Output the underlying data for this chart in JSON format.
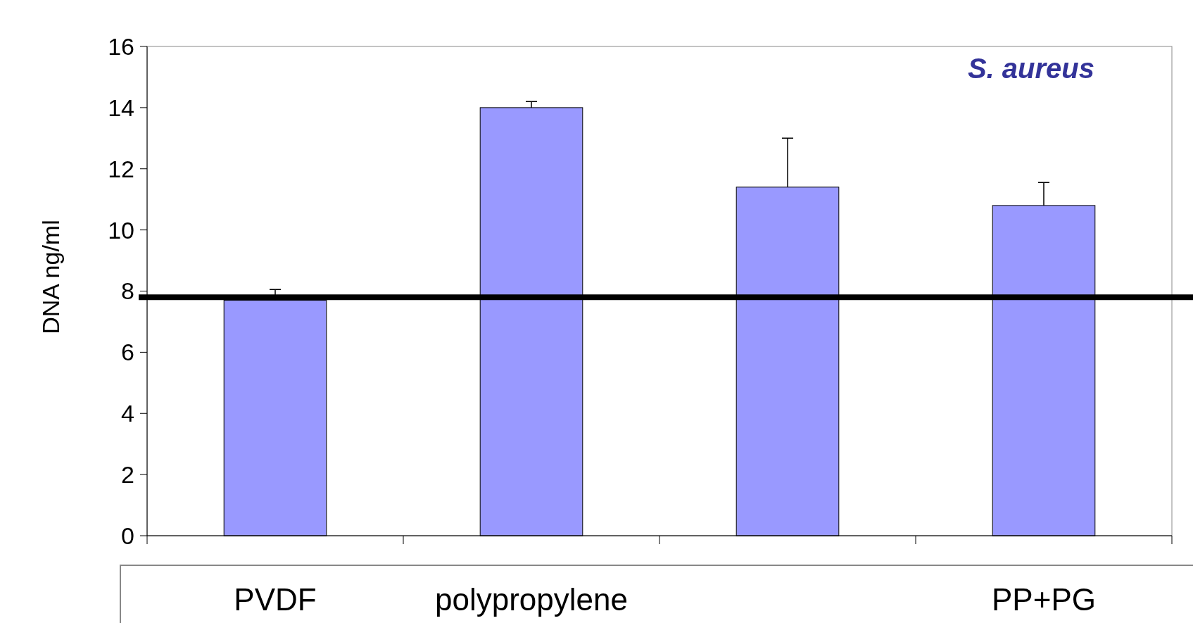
{
  "chart_data": {
    "type": "bar",
    "title": "S. aureus",
    "ylabel": "DNA ng/ml",
    "categories": [
      "PVDF",
      "polypropylene",
      null,
      "PP+PG"
    ],
    "values": [
      7.7,
      14.0,
      11.4,
      10.8
    ],
    "errors": [
      [
        7.7,
        8.05
      ],
      [
        14.0,
        14.2
      ],
      [
        11.4,
        13.0
      ],
      [
        10.8,
        11.55
      ]
    ],
    "color": "#9999ff",
    "ylim": [
      0,
      16
    ],
    "yticks": [
      0,
      2,
      4,
      6,
      8,
      10,
      12,
      14,
      16
    ],
    "grid": false,
    "ref_lines": [
      {
        "axis": "y",
        "value": 7.8,
        "color": "#000000"
      }
    ]
  }
}
